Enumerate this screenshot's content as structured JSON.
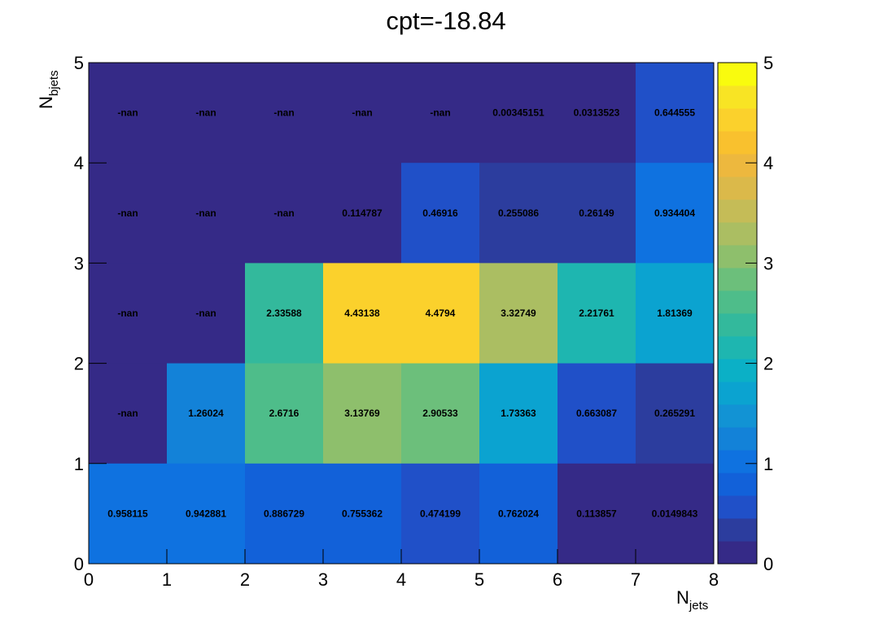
{
  "chart_data": {
    "type": "heatmap",
    "title": "cpt=-18.84",
    "xlabel": {
      "main": "N",
      "sub": "jets"
    },
    "ylabel": {
      "main": "N",
      "sub": "bjets"
    },
    "xlim": [
      0,
      8
    ],
    "ylim": [
      0,
      5
    ],
    "zlim": [
      0,
      5
    ],
    "x_ticks": [
      "0",
      "1",
      "2",
      "3",
      "4",
      "5",
      "6",
      "7",
      "8"
    ],
    "y_ticks": [
      "0",
      "1",
      "2",
      "3",
      "4",
      "5"
    ],
    "z_ticks": [
      "0",
      "1",
      "2",
      "3",
      "4",
      "5"
    ],
    "colormap": [
      "#352a87",
      "#2c3d9e",
      "#2050c8",
      "#1261d9",
      "#0f72e0",
      "#1382d8",
      "#1293d4",
      "#0ba3d0",
      "#0bb0c6",
      "#1eb6b0",
      "#33b99c",
      "#4ebd8a",
      "#6cbf7b",
      "#8ebf6c",
      "#abbe62",
      "#c5bc57",
      "#dbb94a",
      "#edb83e",
      "#f9c12e",
      "#fbd12c",
      "#f8e424",
      "#f9fb0e"
    ],
    "cells": [
      {
        "row": 4,
        "values": [
          "-nan",
          "-nan",
          "-nan",
          "-nan",
          "-nan",
          "0.00345151",
          "0.0313523",
          "0.644555"
        ]
      },
      {
        "row": 3,
        "values": [
          "-nan",
          "-nan",
          "-nan",
          "0.114787",
          "0.46916",
          "0.255086",
          "0.26149",
          "0.934404"
        ]
      },
      {
        "row": 2,
        "values": [
          "-nan",
          "-nan",
          "2.33588",
          "4.43138",
          "4.4794",
          "3.32749",
          "2.21761",
          "1.81369"
        ]
      },
      {
        "row": 1,
        "values": [
          "-nan",
          "1.26024",
          "2.6716",
          "3.13769",
          "2.90533",
          "1.73363",
          "0.663087",
          "0.265291"
        ]
      },
      {
        "row": 0,
        "values": [
          "0.958115",
          "0.942881",
          "0.886729",
          "0.755362",
          "0.474199",
          "0.762024",
          "0.113857",
          "0.0149843"
        ]
      }
    ]
  }
}
